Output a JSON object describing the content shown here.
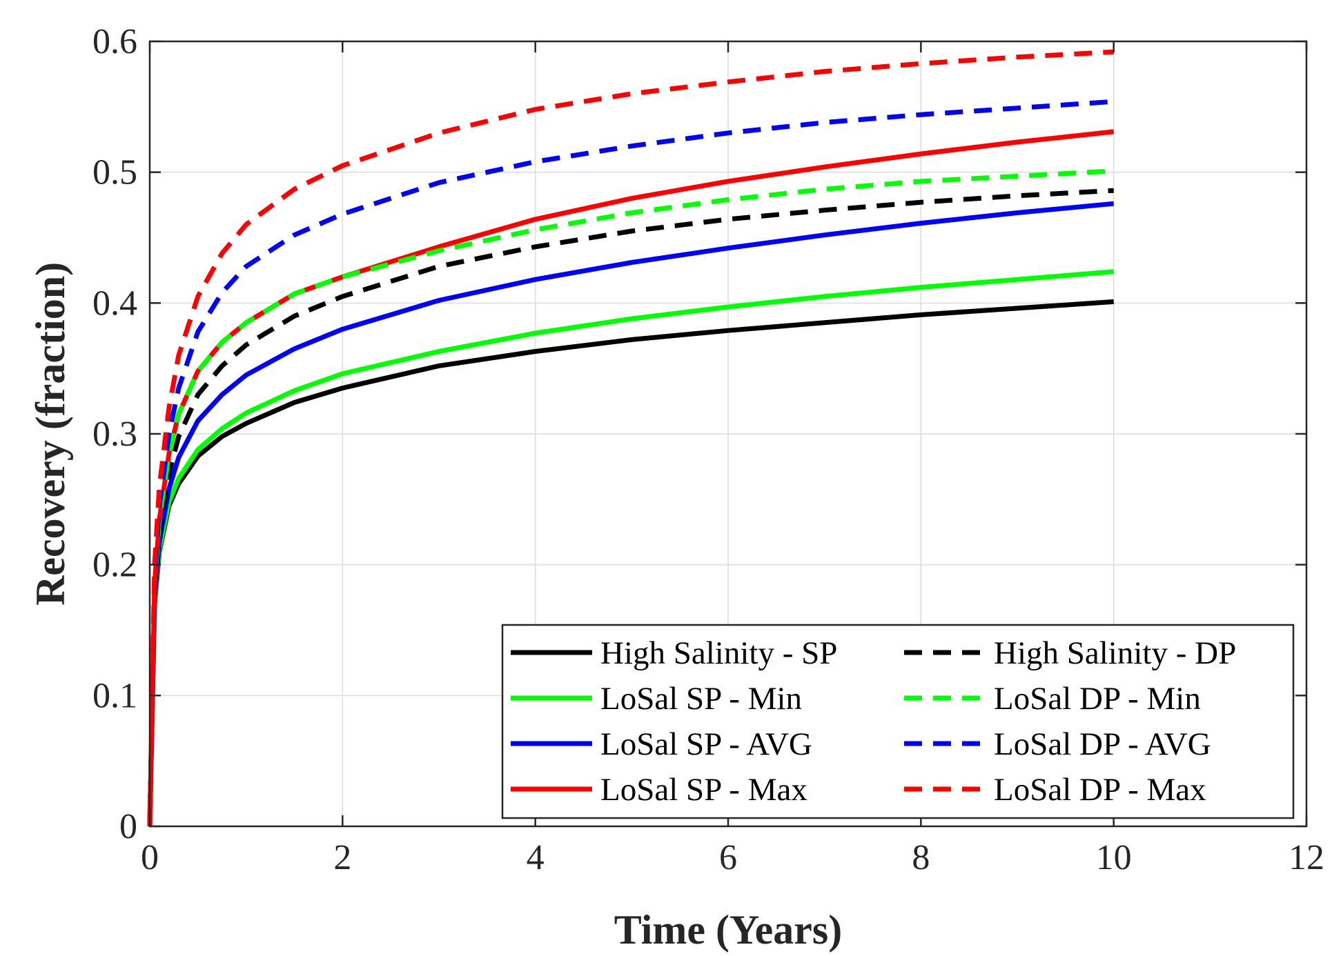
{
  "chart_data": {
    "type": "line",
    "title": "",
    "xlabel": "Time (Years)",
    "ylabel": "Recovery (fraction)",
    "xlim": [
      0,
      12
    ],
    "ylim": [
      0,
      0.6
    ],
    "xticks": [
      0,
      2,
      4,
      6,
      8,
      10,
      12
    ],
    "yticks": [
      0,
      0.1,
      0.2,
      0.3,
      0.4,
      0.5,
      0.6
    ],
    "xtick_labels": [
      "0",
      "2",
      "4",
      "6",
      "8",
      "10",
      "12"
    ],
    "ytick_labels": [
      "0",
      "0.1",
      "0.2",
      "0.3",
      "0.4",
      "0.5",
      "0.6"
    ],
    "grid": true,
    "legend_position": "bottom-right",
    "x": [
      0,
      0.05,
      0.1,
      0.2,
      0.3,
      0.5,
      0.75,
      1,
      1.5,
      2,
      3,
      4,
      5,
      6,
      7,
      8,
      9,
      10
    ],
    "series": [
      {
        "name": "High Salinity - SP",
        "style": "solid",
        "color": "#000000",
        "values": [
          0,
          0.17,
          0.21,
          0.245,
          0.262,
          0.283,
          0.298,
          0.308,
          0.324,
          0.335,
          0.352,
          0.363,
          0.372,
          0.379,
          0.385,
          0.391,
          0.396,
          0.401
        ]
      },
      {
        "name": "High Salinity - DP",
        "style": "dashed",
        "color": "#000000",
        "values": [
          0,
          0.18,
          0.225,
          0.27,
          0.298,
          0.33,
          0.352,
          0.368,
          0.39,
          0.405,
          0.428,
          0.443,
          0.455,
          0.464,
          0.471,
          0.477,
          0.482,
          0.486
        ]
      },
      {
        "name": "LoSal SP - Min",
        "style": "solid",
        "color": "#00ff00",
        "values": [
          0,
          0.172,
          0.212,
          0.248,
          0.266,
          0.288,
          0.304,
          0.316,
          0.333,
          0.346,
          0.363,
          0.377,
          0.388,
          0.397,
          0.405,
          0.412,
          0.418,
          0.424
        ]
      },
      {
        "name": "LoSal DP - Min",
        "style": "dashed",
        "color": "#00ff00",
        "values": [
          0,
          0.185,
          0.235,
          0.285,
          0.315,
          0.348,
          0.37,
          0.385,
          0.407,
          0.42,
          0.44,
          0.456,
          0.469,
          0.479,
          0.487,
          0.493,
          0.497,
          0.501
        ]
      },
      {
        "name": "LoSal SP - AVG",
        "style": "solid",
        "color": "#0000ff",
        "values": [
          0,
          0.175,
          0.218,
          0.258,
          0.282,
          0.31,
          0.33,
          0.345,
          0.365,
          0.38,
          0.402,
          0.418,
          0.431,
          0.442,
          0.452,
          0.461,
          0.469,
          0.476
        ]
      },
      {
        "name": "LoSal DP - AVG",
        "style": "dashed",
        "color": "#0000ff",
        "values": [
          0,
          0.19,
          0.245,
          0.3,
          0.335,
          0.378,
          0.408,
          0.428,
          0.452,
          0.468,
          0.492,
          0.508,
          0.52,
          0.53,
          0.538,
          0.544,
          0.549,
          0.554
        ]
      },
      {
        "name": "LoSal SP - Max",
        "style": "solid",
        "color": "#ff0000",
        "values": [
          0,
          0.185,
          0.235,
          0.285,
          0.315,
          0.348,
          0.37,
          0.385,
          0.407,
          0.42,
          0.443,
          0.464,
          0.48,
          0.493,
          0.504,
          0.514,
          0.523,
          0.531
        ]
      },
      {
        "name": "LoSal DP - Max",
        "style": "dashed",
        "color": "#ff0000",
        "values": [
          0,
          0.2,
          0.26,
          0.32,
          0.36,
          0.405,
          0.438,
          0.46,
          0.487,
          0.505,
          0.53,
          0.548,
          0.56,
          0.569,
          0.577,
          0.583,
          0.588,
          0.592
        ]
      }
    ],
    "legend_order": [
      0,
      1,
      2,
      3,
      4,
      5,
      6,
      7
    ]
  }
}
